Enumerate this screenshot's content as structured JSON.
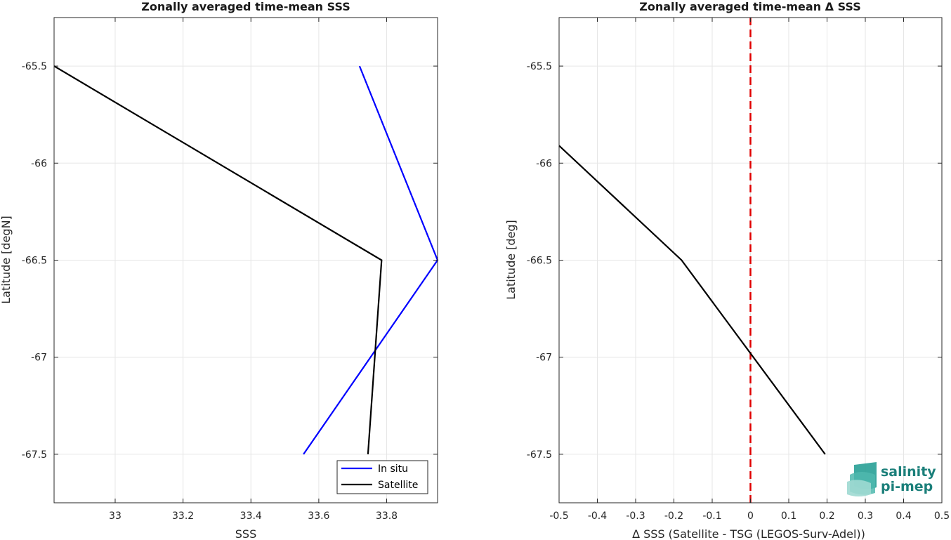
{
  "colors": {
    "insitu": "#0000ff",
    "satellite": "#000000",
    "zero_line": "#e00000",
    "grid": "#e6e6e6",
    "logo_teal": "#1b9a8f"
  },
  "logo": {
    "line1": "salinity",
    "line2": "pi-mep"
  },
  "chart_data": [
    {
      "type": "line",
      "title": "Zonally averaged time-mean SSS",
      "xlabel": "SSS",
      "ylabel": "Latitude [degN]",
      "xlim": [
        32.82,
        33.95
      ],
      "ylim": [
        -67.75,
        -65.25
      ],
      "xticks": [
        33,
        33.2,
        33.4,
        33.6,
        33.8
      ],
      "xtick_labels": [
        "33",
        "33.2",
        "33.4",
        "33.6",
        "33.8"
      ],
      "yticks": [
        -65.5,
        -66,
        -66.5,
        -67,
        -67.5
      ],
      "ytick_labels": [
        "-65.5",
        "-66",
        "-66.5",
        "-67",
        "-67.5"
      ],
      "grid": true,
      "legend_position": "bottom-right",
      "series": [
        {
          "name": "In situ",
          "color": "#0000ff",
          "x": [
            33.72,
            33.95,
            33.555
          ],
          "y": [
            -65.5,
            -66.5,
            -67.5
          ]
        },
        {
          "name": "Satellite",
          "color": "#000000",
          "x": [
            32.82,
            33.785,
            33.745
          ],
          "y": [
            -65.5,
            -66.5,
            -67.5
          ]
        }
      ]
    },
    {
      "type": "line",
      "title": "Zonally averaged time-mean Δ SSS",
      "xlabel": "Δ SSS (Satellite - TSG (LEGOS-Surv-Adel))",
      "ylabel": "Latitude [deg]",
      "xlim": [
        -0.5,
        0.5
      ],
      "ylim": [
        -67.75,
        -65.25
      ],
      "xticks": [
        -0.5,
        -0.4,
        -0.3,
        -0.2,
        -0.1,
        0,
        0.1,
        0.2,
        0.3,
        0.4,
        0.5
      ],
      "xtick_labels": [
        "-0.5",
        "-0.4",
        "-0.3",
        "-0.2",
        "-0.1",
        "0",
        "0.1",
        "0.2",
        "0.3",
        "0.4",
        "0.5"
      ],
      "yticks": [
        -65.5,
        -66,
        -66.5,
        -67,
        -67.5
      ],
      "ytick_labels": [
        "-65.5",
        "-66",
        "-66.5",
        "-67",
        "-67.5"
      ],
      "grid": true,
      "reference_line_x": 0,
      "series": [
        {
          "color": "#000000",
          "x": [
            -0.5,
            -0.18,
            0.195
          ],
          "y": [
            -65.91,
            -66.5,
            -67.5
          ]
        }
      ]
    }
  ]
}
